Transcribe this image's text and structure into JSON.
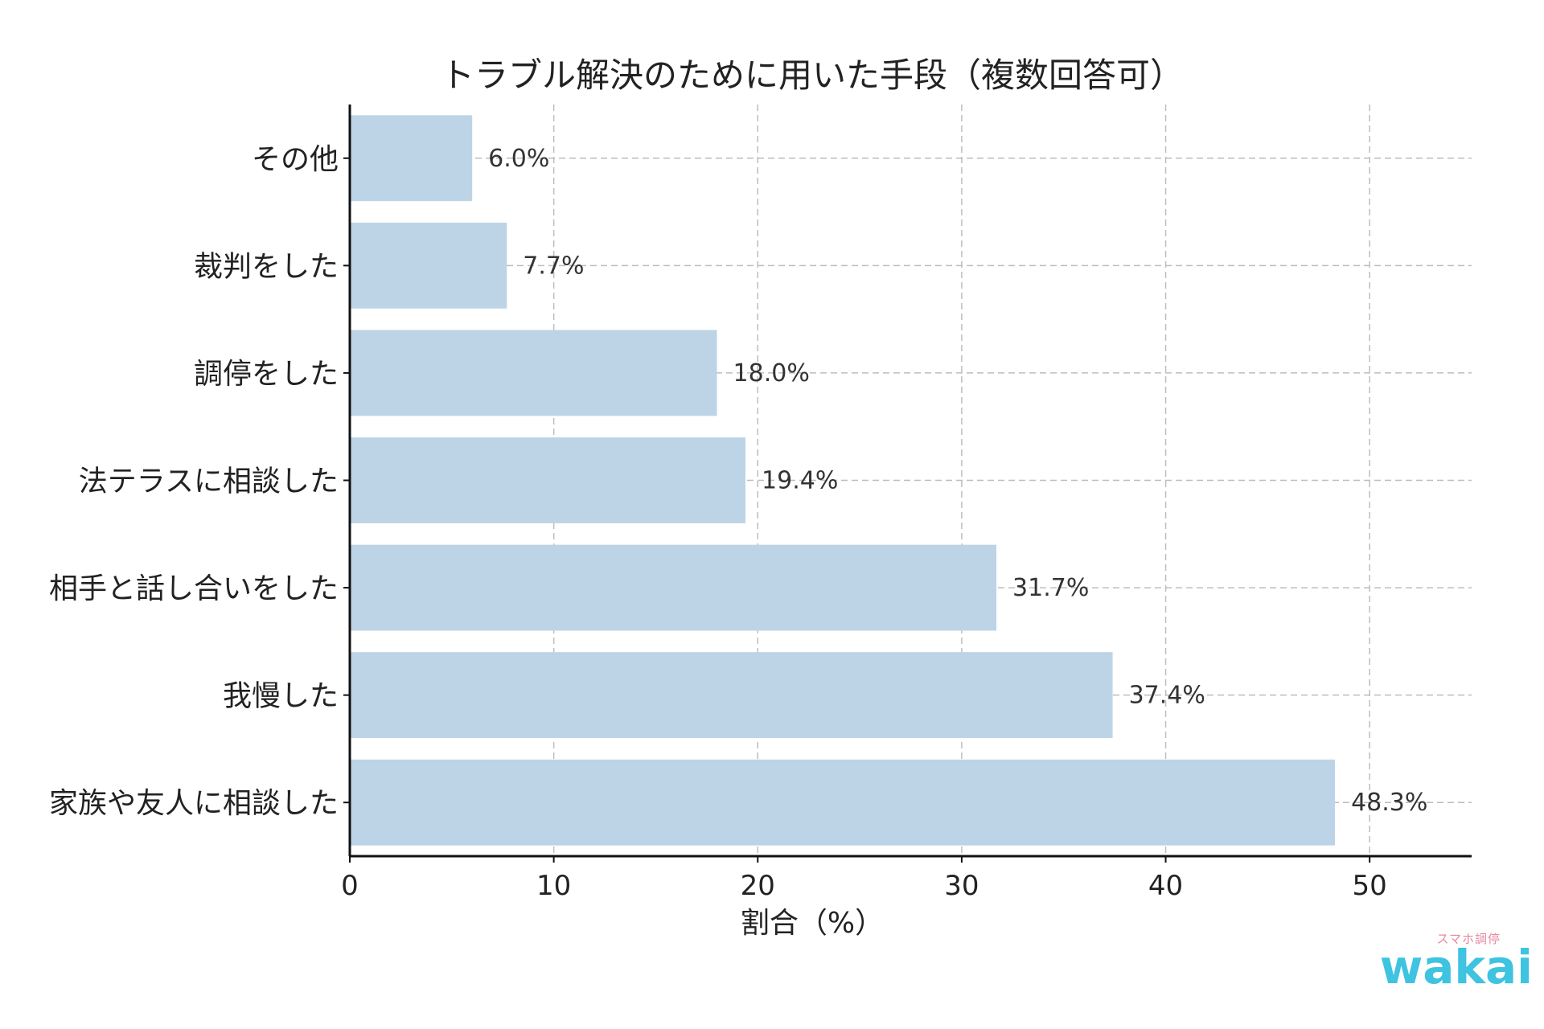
{
  "chart_data": {
    "type": "bar",
    "orientation": "horizontal",
    "title": "トラブル解決のために用いた手段（複数回答可）",
    "xlabel": "割合（%）",
    "ylabel": "",
    "categories": [
      "その他",
      "裁判をした",
      "調停をした",
      "法テラスに相談した",
      "相手と話し合いをした",
      "我慢した",
      "家族や友人に相談した"
    ],
    "values": [
      6.0,
      7.7,
      18.0,
      19.4,
      31.7,
      37.4,
      48.3
    ],
    "data_labels": [
      "6.0%",
      "7.7%",
      "18.0%",
      "19.4%",
      "31.7%",
      "37.4%",
      "48.3%"
    ],
    "xlim": [
      0,
      55
    ],
    "xticks": [
      0,
      10,
      20,
      30,
      40,
      50
    ],
    "grid": true,
    "bar_color": "#bdd4e6"
  },
  "brand": {
    "small": "スマホ調停",
    "main": "wakai"
  }
}
